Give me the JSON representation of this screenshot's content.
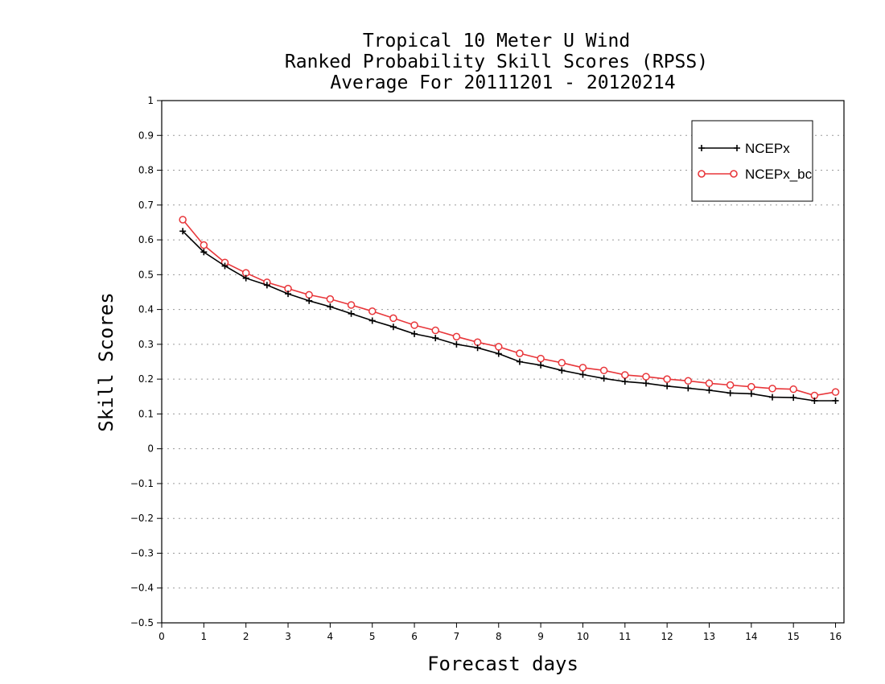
{
  "chart_data": {
    "type": "line",
    "title_lines": [
      "Tropical 10 Meter U Wind",
      "Ranked Probability Skill Scores (RPSS)",
      "Average For 20111201 - 20120214"
    ],
    "xlabel": "Forecast days",
    "ylabel": "Skill Scores",
    "xlim": [
      0,
      16.2
    ],
    "ylim": [
      -0.5,
      1
    ],
    "x_ticks": [
      "0",
      "1",
      "2",
      "3",
      "4",
      "5",
      "6",
      "7",
      "8",
      "9",
      "10",
      "11",
      "12",
      "13",
      "14",
      "15",
      "16"
    ],
    "y_ticks": [
      "1",
      "0.9",
      "0.8",
      "0.7",
      "0.6",
      "0.5",
      "0.4",
      "0.3",
      "0.2",
      "0.1",
      "0",
      "−0.1",
      "−0.2",
      "−0.3",
      "−0.4",
      "−0.5"
    ],
    "grid": true,
    "legend_position": "top-right",
    "x": [
      0.5,
      1,
      1.5,
      2,
      2.5,
      3,
      3.5,
      4,
      4.5,
      5,
      5.5,
      6,
      6.5,
      7,
      7.5,
      8,
      8.5,
      9,
      9.5,
      10,
      10.5,
      11,
      11.5,
      12,
      12.5,
      13,
      13.5,
      14,
      14.5,
      15,
      15.5,
      16
    ],
    "series": [
      {
        "name": "NCEPx",
        "color": "#000000",
        "marker": "plus",
        "values": [
          0.625,
          0.565,
          0.525,
          0.49,
          0.47,
          0.445,
          0.425,
          0.408,
          0.388,
          0.368,
          0.35,
          0.33,
          0.318,
          0.3,
          0.29,
          0.273,
          0.25,
          0.24,
          0.225,
          0.213,
          0.202,
          0.193,
          0.188,
          0.18,
          0.174,
          0.168,
          0.16,
          0.158,
          0.148,
          0.147,
          0.138,
          0.138
        ]
      },
      {
        "name": "NCEPx_bc",
        "color": "#e8363a",
        "marker": "circle",
        "values": [
          0.658,
          0.585,
          0.535,
          0.505,
          0.478,
          0.46,
          0.442,
          0.43,
          0.413,
          0.395,
          0.375,
          0.355,
          0.34,
          0.322,
          0.306,
          0.293,
          0.274,
          0.259,
          0.247,
          0.233,
          0.225,
          0.212,
          0.207,
          0.2,
          0.195,
          0.188,
          0.183,
          0.178,
          0.173,
          0.171,
          0.153,
          0.163
        ]
      }
    ]
  }
}
